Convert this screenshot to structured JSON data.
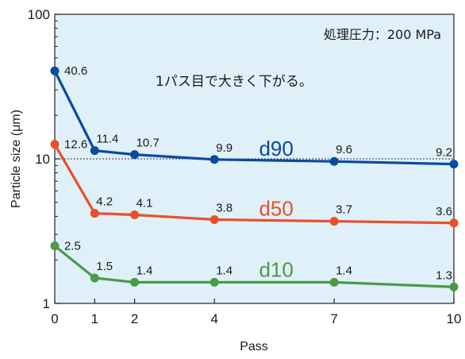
{
  "chart_data": {
    "type": "line",
    "title": "",
    "xlabel": "Pass",
    "ylabel": "Particle size (μm)",
    "yscale": "log",
    "ylim": [
      1,
      100
    ],
    "xlim": [
      0,
      10
    ],
    "x": [
      0,
      1,
      2,
      4,
      7,
      10
    ],
    "x_tick_labels": [
      "0",
      "1",
      "2",
      "4",
      "7",
      "10"
    ],
    "y_tick_labels": [
      "1",
      "10",
      "100"
    ],
    "reference_line_y": 10,
    "series": [
      {
        "name": "d90",
        "color": "#0a4aa0",
        "values": [
          40.6,
          11.4,
          10.7,
          9.9,
          9.6,
          9.2
        ],
        "labels": [
          "40.6",
          "11.4",
          "10.7",
          "9.9",
          "9.6",
          "9.2"
        ]
      },
      {
        "name": "d50",
        "color": "#e8502a",
        "values": [
          12.6,
          4.2,
          4.1,
          3.8,
          3.7,
          3.6
        ],
        "labels": [
          "12.6",
          "4.2",
          "4.1",
          "3.8",
          "3.7",
          "3.6"
        ]
      },
      {
        "name": "d10",
        "color": "#4a9a48",
        "values": [
          2.5,
          1.5,
          1.4,
          1.4,
          1.4,
          1.3
        ],
        "labels": [
          "2.5",
          "1.5",
          "1.4",
          "1.4",
          "1.4",
          "1.3"
        ]
      }
    ],
    "annotations": {
      "condition": "処理圧力：200 MPa",
      "note": "1パス目で大きく下がる。"
    },
    "plot_background": "#dff0f8",
    "grid": false,
    "legend": "none"
  }
}
